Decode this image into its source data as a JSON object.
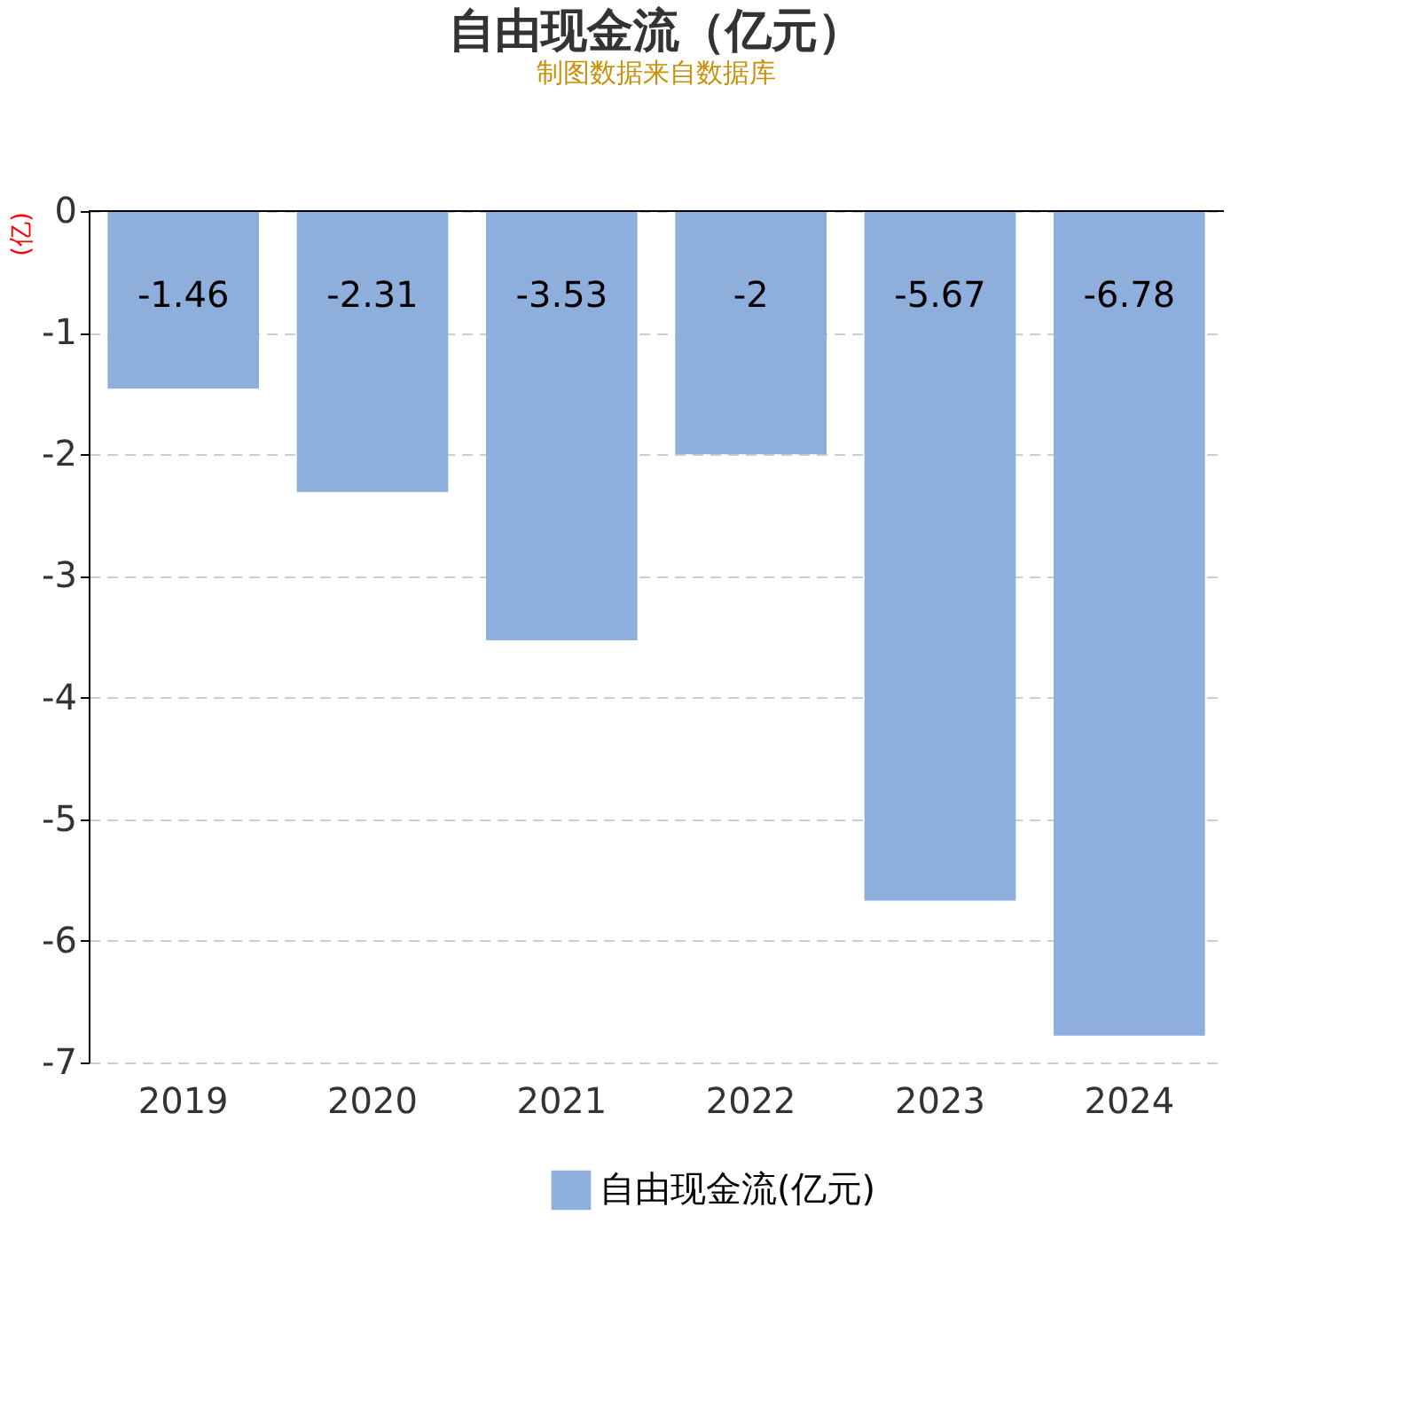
{
  "chart_data": {
    "type": "bar",
    "title": "自由现金流（亿元）",
    "ylabel": "(亿)",
    "categories": [
      "2019",
      "2020",
      "2021",
      "2022",
      "2023",
      "2024"
    ],
    "series": [
      {
        "name": "自由现金流(亿元)",
        "color": "#8eaedb",
        "values": [
          -1.46,
          -2.31,
          -3.53,
          -2,
          -5.67,
          -6.78
        ]
      }
    ],
    "ylim": [
      -7,
      0
    ],
    "yticks": [
      0,
      -1,
      -2,
      -3,
      -4,
      -5,
      -6,
      -7
    ],
    "grid": "y",
    "legend": "bottom",
    "data_labels": true,
    "annotations": [
      "制图数据来自数据库"
    ]
  }
}
